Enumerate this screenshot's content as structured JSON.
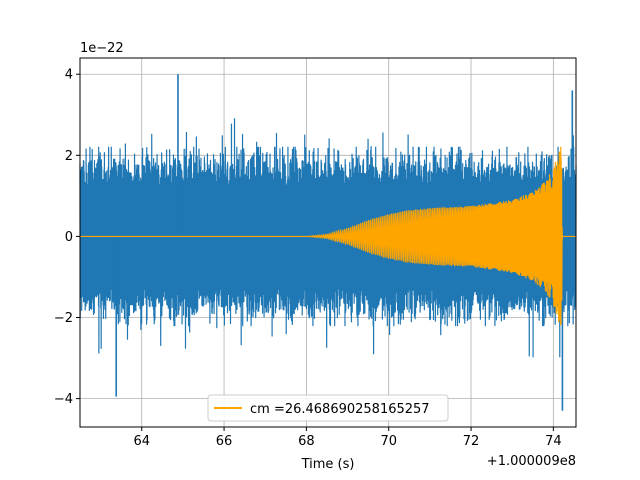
{
  "chart_data": {
    "type": "line",
    "title": "",
    "xlabel": "Time (s)",
    "ylabel": "",
    "x_offset_label": "+1.000009e8",
    "y_scale_label": "1e−22",
    "xlim": [
      62.5,
      74.55
    ],
    "ylim": [
      -4.7,
      4.4
    ],
    "x_ticks": [
      64,
      66,
      68,
      70,
      72,
      74
    ],
    "y_ticks": [
      -4,
      -2,
      0,
      2,
      4
    ],
    "x_tick_labels": [
      "64",
      "66",
      "68",
      "70",
      "72",
      "74"
    ],
    "y_tick_labels": [
      "−4",
      "−2",
      "0",
      "2",
      "4"
    ],
    "grid": true,
    "legend_position": "bottom-center",
    "noise_series": {
      "color": "#1f77b4",
      "typical_peak_amplitude": 2.2,
      "extreme_points": [
        {
          "x": 64.88,
          "y": 4.0
        },
        {
          "x": 74.22,
          "y": -4.3
        },
        {
          "x": 63.38,
          "y": -3.95
        },
        {
          "x": 74.46,
          "y": 3.6
        }
      ]
    },
    "series": [
      {
        "name": "cm =26.468690258165257",
        "color": "#ffa500",
        "envelope": [
          {
            "x": 62.5,
            "amp": 0.0
          },
          {
            "x": 68.0,
            "amp": 0.0
          },
          {
            "x": 68.5,
            "amp": 0.05
          },
          {
            "x": 69.0,
            "amp": 0.2
          },
          {
            "x": 69.5,
            "amp": 0.4
          },
          {
            "x": 70.0,
            "amp": 0.55
          },
          {
            "x": 70.5,
            "amp": 0.65
          },
          {
            "x": 71.0,
            "amp": 0.7
          },
          {
            "x": 72.0,
            "amp": 0.75
          },
          {
            "x": 73.0,
            "amp": 0.9
          },
          {
            "x": 73.5,
            "amp": 1.1
          },
          {
            "x": 73.8,
            "amp": 1.35
          },
          {
            "x": 74.0,
            "amp": 1.7
          },
          {
            "x": 74.15,
            "amp": 2.2
          },
          {
            "x": 74.2,
            "amp": 2.3
          },
          {
            "x": 74.22,
            "amp": 0.0
          },
          {
            "x": 74.55,
            "amp": 0.0
          }
        ]
      }
    ]
  }
}
